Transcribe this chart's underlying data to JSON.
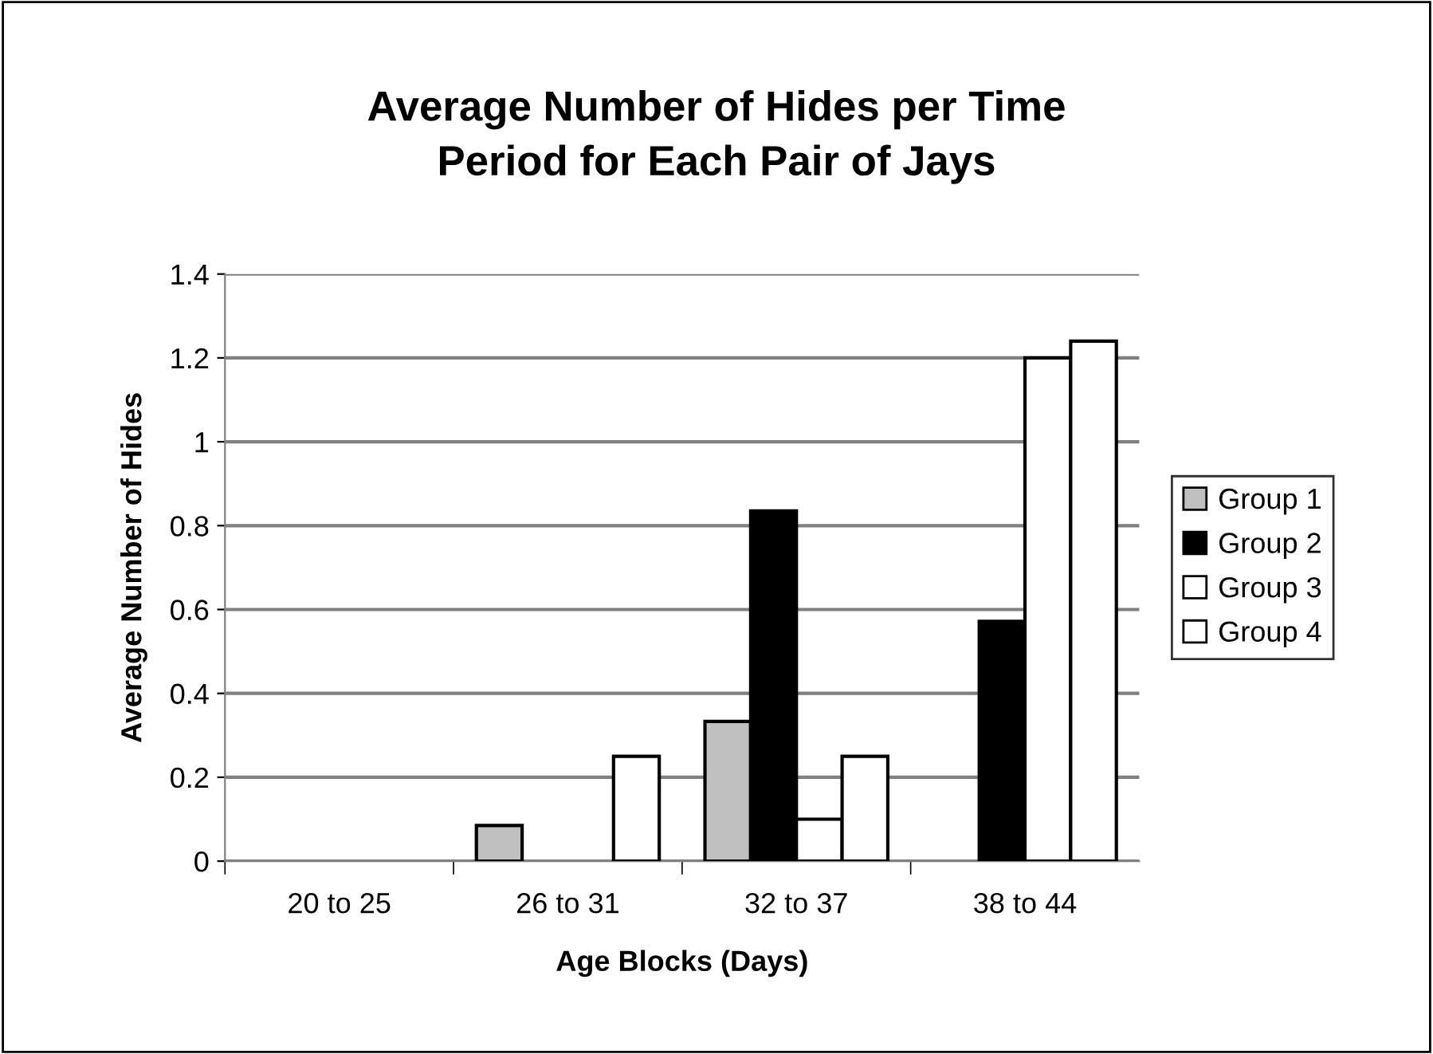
{
  "chart_data": {
    "type": "bar",
    "title": "Average Number of Hides per Time Period for Each Pair of Jays",
    "xlabel": "Age Blocks (Days)",
    "ylabel": "Average Number of Hides",
    "categories": [
      "20 to 25",
      "26 to 31",
      "32 to 37",
      "38 to 44"
    ],
    "series": [
      {
        "name": "Group 1",
        "color": "#c0c0c0",
        "values": [
          0,
          0.085,
          0.333,
          0
        ]
      },
      {
        "name": "Group 2",
        "color": "#000000",
        "values": [
          0,
          0,
          0.835,
          0.572
        ]
      },
      {
        "name": "Group 3",
        "color": "#ffffff",
        "values": [
          0,
          0,
          0.1,
          1.2
        ]
      },
      {
        "name": "Group 4",
        "color": "#ffffff",
        "values": [
          0,
          0.25,
          0.25,
          1.24
        ]
      }
    ],
    "ylim": [
      0,
      1.4
    ],
    "yticks": [
      0,
      0.2,
      0.4,
      0.6,
      0.8,
      1,
      1.2,
      1.4
    ],
    "grid": "y",
    "legend": "right"
  }
}
